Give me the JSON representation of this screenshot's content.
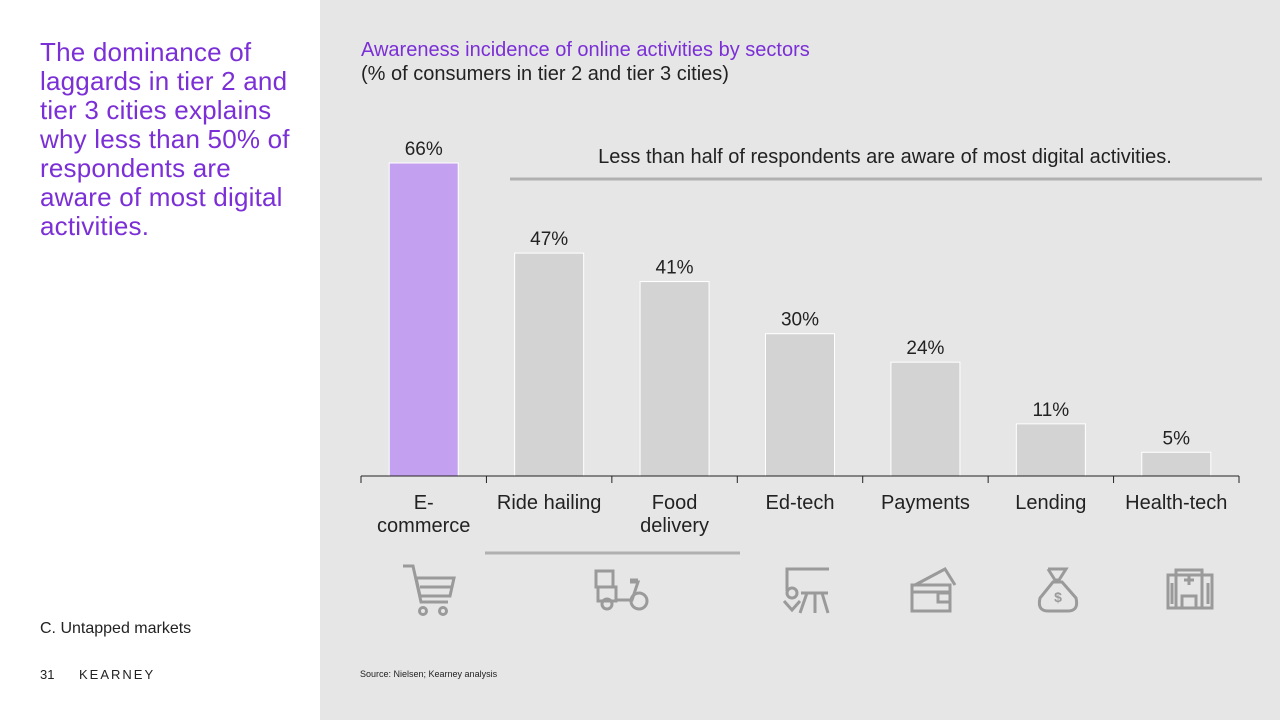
{
  "slide": {
    "headline": "The dominance of laggards in tier 2 and tier 3 cities explains why less than 50% of respondents are aware of most digital activities.",
    "section": "C. Untapped markets",
    "page_number": "31",
    "brand": "KEARNEY",
    "source": "Source: Nielsen; Kearney analysis"
  },
  "colors": {
    "accent": "#7b2fd6",
    "highlight_bar": "#c4a0f0",
    "bar": "#d3d3d3",
    "icon": "#9a9a9a",
    "panel_bg": "#e6e6e6"
  },
  "chart_data": {
    "type": "bar",
    "title": "Awareness incidence of online activities by sectors",
    "subtitle": "(% of consumers in tier 2 and tier 3 cities)",
    "categories": [
      "E-commerce",
      "Ride hailing",
      "Food delivery",
      "Ed-tech",
      "Payments",
      "Lending",
      "Health-tech"
    ],
    "category_lines": [
      [
        "E-",
        "commerce"
      ],
      [
        "Ride hailing"
      ],
      [
        "Food",
        "delivery"
      ],
      [
        "Ed-tech"
      ],
      [
        "Payments"
      ],
      [
        "Lending"
      ],
      [
        "Health-tech"
      ]
    ],
    "values": [
      66,
      47,
      41,
      30,
      24,
      11,
      5
    ],
    "value_labels": [
      "66%",
      "47%",
      "41%",
      "30%",
      "24%",
      "11%",
      "5%"
    ],
    "highlight_index": 0,
    "annotation": "Less than half of respondents are aware of most digital activities.",
    "icons": [
      "shopping-cart-icon",
      "scooter-delivery-icon",
      "teacher-board-icon",
      "wallet-icon",
      "money-bag-icon",
      "hospital-icon"
    ],
    "ylim": [
      0,
      66
    ],
    "grid": false,
    "legend": "none"
  }
}
